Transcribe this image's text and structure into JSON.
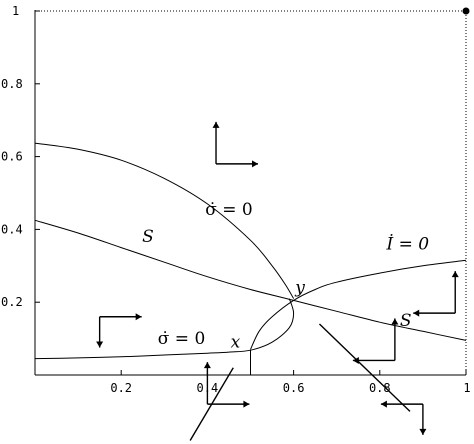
{
  "chart_data": {
    "type": "line",
    "title": "",
    "xlabel": "",
    "ylabel": "",
    "xlim": [
      0,
      1
    ],
    "ylim": [
      0,
      1
    ],
    "x_ticks": [
      {
        "value": 0.2,
        "label": "0.2"
      },
      {
        "value": 0.4,
        "label": "0.4"
      },
      {
        "value": 0.6,
        "label": "0.6"
      },
      {
        "value": 0.8,
        "label": "0.8"
      },
      {
        "value": 1.0,
        "label": "1"
      }
    ],
    "y_ticks": [
      {
        "value": 0.2,
        "label": "0.2"
      },
      {
        "value": 0.4,
        "label": "0.4"
      },
      {
        "value": 0.6,
        "label": "0.6"
      },
      {
        "value": 0.8,
        "label": "0.8"
      },
      {
        "value": 1.0,
        "label": "1"
      }
    ],
    "grid": false,
    "series": [
      {
        "x": [
          0,
          0.1,
          0.2,
          0.3,
          0.4,
          0.5,
          0.55,
          0.58,
          0.6
        ],
        "y": [
          0.637,
          0.62,
          0.59,
          0.54,
          0.47,
          0.37,
          0.3,
          0.25,
          0.21
        ]
      },
      {
        "x": [
          0,
          0.1,
          0.2,
          0.3,
          0.4,
          0.5,
          0.6,
          0.7,
          0.8,
          0.9,
          1.0
        ],
        "y": [
          0.425,
          0.39,
          0.35,
          0.31,
          0.27,
          0.235,
          0.205,
          0.175,
          0.145,
          0.12,
          0.095
        ]
      },
      {
        "x": [
          0.5,
          0.52,
          0.55,
          0.6,
          0.65,
          0.7,
          0.8,
          0.9,
          1.0
        ],
        "y": [
          0.07,
          0.12,
          0.16,
          0.205,
          0.235,
          0.255,
          0.28,
          0.3,
          0.315
        ]
      },
      {
        "x": [
          0,
          0.1,
          0.2,
          0.3,
          0.4,
          0.45,
          0.5,
          0.55,
          0.59,
          0.6,
          0.59
        ],
        "y": [
          0.045,
          0.047,
          0.05,
          0.055,
          0.06,
          0.063,
          0.068,
          0.09,
          0.13,
          0.17,
          0.21
        ]
      },
      {
        "x": [
          0.5,
          0.5
        ],
        "y": [
          0.068,
          0.0
        ]
      }
    ],
    "annotations": [
      {
        "text": "σ̇ = 0",
        "x": 0.45,
        "y": 0.44
      },
      {
        "text": "S",
        "x": 0.262,
        "y": 0.365
      },
      {
        "text": "İ = 0",
        "x": 0.865,
        "y": 0.345
      },
      {
        "text": "y",
        "x": 0.615,
        "y": 0.225
      },
      {
        "text": "S",
        "x": 0.86,
        "y": 0.135
      },
      {
        "text": "σ̇ = 0",
        "x": 0.34,
        "y": 0.085
      },
      {
        "text": "x",
        "x": 0.465,
        "y": 0.075
      }
    ],
    "corner_point": {
      "x": 1.0,
      "y": 1.0
    },
    "flow_arrows": [
      {
        "at": [
          0.42,
          0.58
        ],
        "directions": [
          "up",
          "right"
        ]
      },
      {
        "at": [
          0.15,
          0.16
        ],
        "directions": [
          "down",
          "right"
        ]
      },
      {
        "at": [
          0.975,
          0.17
        ],
        "directions": [
          "up",
          "left"
        ]
      },
      {
        "at": [
          0.835,
          0.04
        ],
        "directions": [
          "up",
          "left"
        ]
      },
      {
        "at": [
          0.4,
          -0.08
        ],
        "directions": [
          "up",
          "right"
        ]
      },
      {
        "at": [
          0.9,
          -0.08
        ],
        "directions": [
          "down",
          "left"
        ]
      }
    ],
    "pointer_lines": [
      {
        "from": [
          0.46,
          0.02
        ],
        "to": [
          0.36,
          -0.18
        ]
      },
      {
        "from": [
          0.66,
          0.14
        ],
        "to": [
          0.87,
          -0.1
        ]
      }
    ]
  }
}
